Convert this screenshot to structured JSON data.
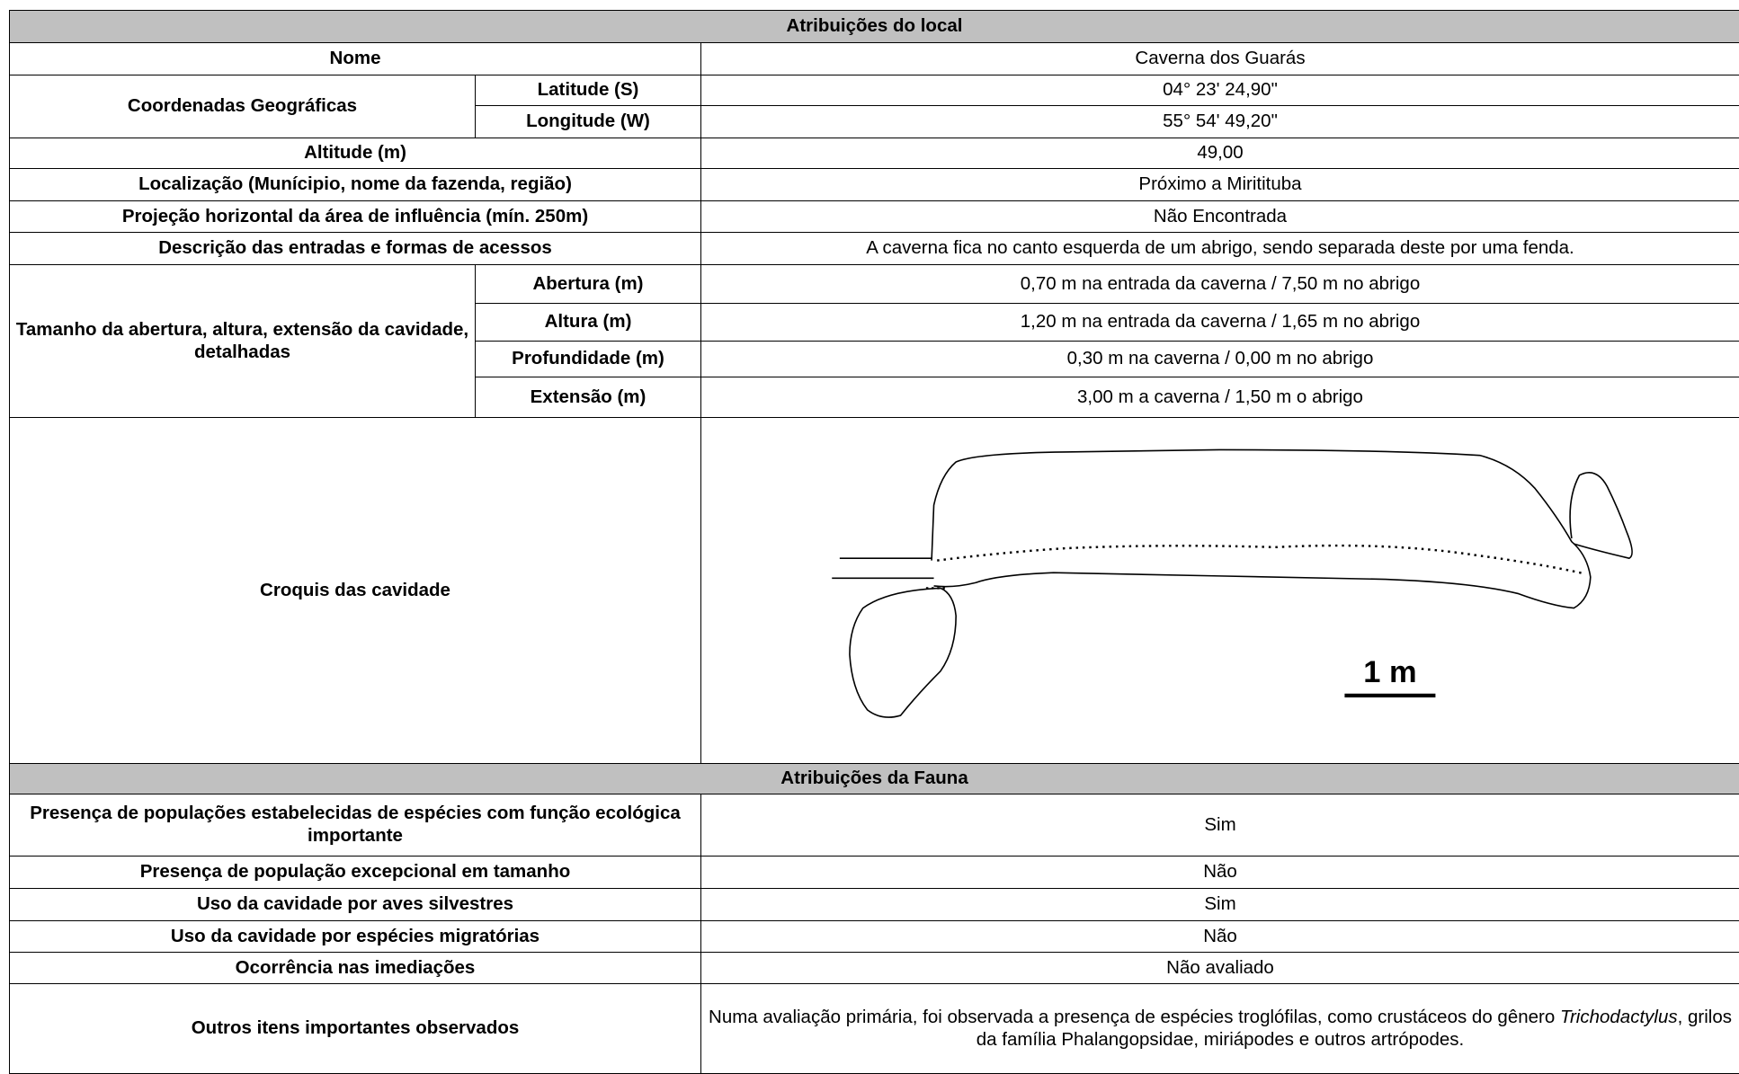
{
  "site": {
    "title": "Atribuições do local",
    "name": {
      "label": "Nome",
      "value": "Caverna dos Guarás"
    },
    "coordinates": {
      "label": "Coordenadas Geográficas",
      "latitude": {
        "label": "Latitude (S)",
        "value": "04° 23' 24,90\""
      },
      "longitude": {
        "label": "Longitude (W)",
        "value": "55° 54' 49,20\""
      }
    },
    "altitude": {
      "label": "Altitude (m)",
      "value": "49,00"
    },
    "location": {
      "label": "Localização (Munícipio, nome da fazenda, região)",
      "value": "Próximo a Miritituba"
    },
    "projection": {
      "label": "Projeção horizontal da área de influência (mín. 250m)",
      "value": "Não Encontrada"
    },
    "entrances": {
      "label": "Descrição das entradas e formas de acessos",
      "value": "A caverna fica no canto esquerda de um abrigo, sendo separada deste por uma fenda."
    },
    "size": {
      "label": "Tamanho da abertura, altura, extensão da cavidade, detalhadas",
      "rows": [
        {
          "label": "Abertura (m)",
          "value": "0,70 m na entrada da caverna / 7,50 m no abrigo"
        },
        {
          "label": "Altura (m)",
          "value": "1,20 m na entrada da caverna / 1,65 m no abrigo"
        },
        {
          "label": "Profundidade (m)",
          "value": "0,30 m na caverna / 0,00 m no abrigo"
        },
        {
          "label": "Extensão (m)",
          "value": "3,00 m a caverna / 1,50 m o abrigo"
        }
      ]
    },
    "sketch": {
      "label": "Croquis das cavidade",
      "scale_label": "1 m"
    }
  },
  "fauna": {
    "title": "Atribuições da Fauna",
    "rows": [
      {
        "label": "Presença de populações estabelecidas de espécies com função ecológica importante",
        "value": "Sim"
      },
      {
        "label": "Presença de população excepcional em tamanho",
        "value": "Não"
      },
      {
        "label": "Uso da cavidade por aves silvestres",
        "value": "Sim"
      },
      {
        "label": "Uso da cavidade por espécies migratórias",
        "value": "Não"
      },
      {
        "label": "Ocorrência nas imediações",
        "value": "Não avaliado"
      }
    ],
    "other": {
      "label": "Outros itens importantes observados",
      "value_parts": [
        "Numa avaliação primária, foi observada a presença de espécies troglófilas, como crustáceos do gênero ",
        "Trichodactylus",
        ", grilos da família Phalangopsidae, miriápodes e outros artrópodes."
      ]
    }
  }
}
